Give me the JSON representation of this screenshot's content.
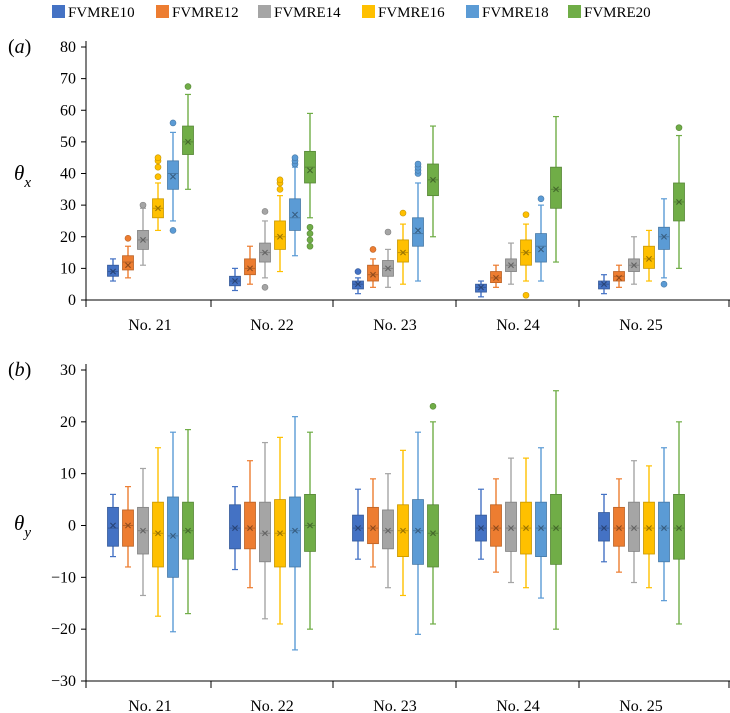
{
  "legend": [
    {
      "name": "FVMRE10",
      "color": "#4472c4"
    },
    {
      "name": "FVMRE12",
      "color": "#ed7d31"
    },
    {
      "name": "FVMRE14",
      "color": "#a5a5a5"
    },
    {
      "name": "FVMRE16",
      "color": "#ffc000"
    },
    {
      "name": "FVMRE18",
      "color": "#5b9bd5"
    },
    {
      "name": "FVMRE20",
      "color": "#70ad47"
    }
  ],
  "chart_data": [
    {
      "type": "box",
      "panel_label": "(a)",
      "ylabel": "θ",
      "ylabel_subscript": "x",
      "ylim": [
        0,
        80
      ],
      "yticks": [
        0,
        10,
        20,
        30,
        40,
        50,
        60,
        70,
        80
      ],
      "categories": [
        "No. 21",
        "No. 22",
        "No. 23",
        "No. 24",
        "No. 25"
      ],
      "series": [
        {
          "name": "FVMRE10",
          "boxes": [
            {
              "min": 6,
              "q1": 7.5,
              "median": 9,
              "q3": 11,
              "max": 13,
              "mean": 9,
              "outliers": []
            },
            {
              "min": 3,
              "q1": 4.5,
              "median": 6,
              "q3": 7.5,
              "max": 10,
              "mean": 6,
              "outliers": []
            },
            {
              "min": 2,
              "q1": 3.5,
              "median": 5,
              "q3": 6,
              "max": 7,
              "mean": 5,
              "outliers": [
                9
              ]
            },
            {
              "min": 1,
              "q1": 2.5,
              "median": 4,
              "q3": 5,
              "max": 6,
              "mean": 4,
              "outliers": []
            },
            {
              "min": 2,
              "q1": 3.5,
              "median": 5,
              "q3": 6,
              "max": 8,
              "mean": 5,
              "outliers": []
            }
          ]
        },
        {
          "name": "FVMRE12",
          "boxes": [
            {
              "min": 7,
              "q1": 9.5,
              "median": 12,
              "q3": 14,
              "max": 17,
              "mean": 11,
              "outliers": [
                19.5
              ]
            },
            {
              "min": 5,
              "q1": 8,
              "median": 10,
              "q3": 13,
              "max": 17,
              "mean": 10,
              "outliers": []
            },
            {
              "min": 4,
              "q1": 6,
              "median": 8,
              "q3": 11,
              "max": 13,
              "mean": 8,
              "outliers": [
                16
              ]
            },
            {
              "min": 4,
              "q1": 5.5,
              "median": 7,
              "q3": 9,
              "max": 11,
              "mean": 7,
              "outliers": []
            },
            {
              "min": 4,
              "q1": 6,
              "median": 7.5,
              "q3": 9,
              "max": 11,
              "mean": 7,
              "outliers": []
            }
          ]
        },
        {
          "name": "FVMRE14",
          "boxes": [
            {
              "min": 11,
              "q1": 16,
              "median": 19,
              "q3": 22,
              "max": 29,
              "mean": 19,
              "outliers": [
                30
              ]
            },
            {
              "min": 7,
              "q1": 12,
              "median": 15,
              "q3": 18,
              "max": 25,
              "mean": 15,
              "outliers": [
                4,
                28
              ]
            },
            {
              "min": 4,
              "q1": 7.5,
              "median": 10,
              "q3": 12.5,
              "max": 16,
              "mean": 10,
              "outliers": [
                21.5
              ]
            },
            {
              "min": 5,
              "q1": 9,
              "median": 11,
              "q3": 13,
              "max": 18,
              "mean": 11,
              "outliers": []
            },
            {
              "min": 5,
              "q1": 9,
              "median": 11,
              "q3": 13,
              "max": 20,
              "mean": 11,
              "outliers": []
            }
          ]
        },
        {
          "name": "FVMRE16",
          "boxes": [
            {
              "min": 22,
              "q1": 26,
              "median": 29,
              "q3": 32,
              "max": 37,
              "mean": 29,
              "outliers": [
                39,
                42,
                44,
                45
              ]
            },
            {
              "min": 9,
              "q1": 16,
              "median": 20,
              "q3": 25,
              "max": 33,
              "mean": 20,
              "outliers": [
                35,
                37,
                38
              ]
            },
            {
              "min": 5,
              "q1": 12,
              "median": 15,
              "q3": 19,
              "max": 24,
              "mean": 15,
              "outliers": [
                27.5
              ]
            },
            {
              "min": 6,
              "q1": 11,
              "median": 15,
              "q3": 19,
              "max": 24,
              "mean": 15,
              "outliers": [
                1.5,
                27
              ]
            },
            {
              "min": 6,
              "q1": 10,
              "median": 13,
              "q3": 17,
              "max": 22,
              "mean": 13,
              "outliers": []
            }
          ]
        },
        {
          "name": "FVMRE18",
          "boxes": [
            {
              "min": 25,
              "q1": 35,
              "median": 40,
              "q3": 44,
              "max": 53,
              "mean": 39,
              "outliers": [
                22,
                56
              ]
            },
            {
              "min": 14,
              "q1": 22,
              "median": 26,
              "q3": 32,
              "max": 42,
              "mean": 27,
              "outliers": [
                43,
                44,
                45
              ]
            },
            {
              "min": 6,
              "q1": 17,
              "median": 21,
              "q3": 26,
              "max": 37,
              "mean": 22,
              "outliers": [
                40,
                41,
                42,
                43
              ]
            },
            {
              "min": 6,
              "q1": 12,
              "median": 17,
              "q3": 21,
              "max": 30,
              "mean": 16,
              "outliers": [
                32
              ]
            },
            {
              "min": 7,
              "q1": 16,
              "median": 20,
              "q3": 23,
              "max": 32,
              "mean": 20,
              "outliers": [
                5
              ]
            }
          ]
        },
        {
          "name": "FVMRE20",
          "boxes": [
            {
              "min": 35,
              "q1": 46,
              "median": 50,
              "q3": 55,
              "max": 65,
              "mean": 50,
              "outliers": [
                67.5
              ]
            },
            {
              "min": 26,
              "q1": 37,
              "median": 42,
              "q3": 47,
              "max": 59,
              "mean": 41,
              "outliers": [
                17,
                19,
                21,
                23
              ]
            },
            {
              "min": 20,
              "q1": 33,
              "median": 38,
              "q3": 43,
              "max": 55,
              "mean": 38,
              "outliers": []
            },
            {
              "min": 12,
              "q1": 29,
              "median": 35,
              "q3": 42,
              "max": 58,
              "mean": 35,
              "outliers": []
            },
            {
              "min": 10,
              "q1": 25,
              "median": 31,
              "q3": 37,
              "max": 52,
              "mean": 31,
              "outliers": [
                54.5
              ]
            }
          ]
        }
      ]
    },
    {
      "type": "box",
      "panel_label": "(b)",
      "ylabel": "θ",
      "ylabel_subscript": "y",
      "ylim": [
        -30,
        30
      ],
      "yticks": [
        -30,
        -20,
        -10,
        0,
        10,
        20,
        30
      ],
      "categories": [
        "No. 21",
        "No. 22",
        "No. 23",
        "No. 24",
        "No. 25"
      ],
      "series": [
        {
          "name": "FVMRE10",
          "boxes": [
            {
              "min": -6,
              "q1": -4,
              "median": -0.5,
              "q3": 3.5,
              "max": 6,
              "mean": 0,
              "outliers": []
            },
            {
              "min": -8.5,
              "q1": -4.5,
              "median": -0.5,
              "q3": 4,
              "max": 7.5,
              "mean": -0.5,
              "outliers": []
            },
            {
              "min": -6.5,
              "q1": -3,
              "median": -0.5,
              "q3": 2,
              "max": 7,
              "mean": -0.5,
              "outliers": []
            },
            {
              "min": -6.5,
              "q1": -3,
              "median": -0.5,
              "q3": 2,
              "max": 7,
              "mean": -0.5,
              "outliers": []
            },
            {
              "min": -7,
              "q1": -3,
              "median": -0.5,
              "q3": 2.5,
              "max": 6,
              "mean": -0.5,
              "outliers": []
            }
          ]
        },
        {
          "name": "FVMRE12",
          "boxes": [
            {
              "min": -8,
              "q1": -4,
              "median": 0,
              "q3": 3,
              "max": 7.5,
              "mean": 0,
              "outliers": []
            },
            {
              "min": -12,
              "q1": -4.5,
              "median": -0.5,
              "q3": 4.5,
              "max": 12.5,
              "mean": -0.5,
              "outliers": []
            },
            {
              "min": -8,
              "q1": -3.5,
              "median": -0.5,
              "q3": 3.5,
              "max": 9,
              "mean": -0.5,
              "outliers": []
            },
            {
              "min": -9,
              "q1": -4,
              "median": -0.5,
              "q3": 4,
              "max": 9,
              "mean": -0.5,
              "outliers": []
            },
            {
              "min": -9,
              "q1": -4,
              "median": -0.5,
              "q3": 3.5,
              "max": 9,
              "mean": -0.5,
              "outliers": []
            }
          ]
        },
        {
          "name": "FVMRE14",
          "boxes": [
            {
              "min": -13.5,
              "q1": -5.5,
              "median": -1,
              "q3": 3.5,
              "max": 11,
              "mean": -1,
              "outliers": []
            },
            {
              "min": -18,
              "q1": -7,
              "median": -1.5,
              "q3": 4.5,
              "max": 16,
              "mean": -1.5,
              "outliers": []
            },
            {
              "min": -12,
              "q1": -4.5,
              "median": -1,
              "q3": 3,
              "max": 10,
              "mean": -1,
              "outliers": []
            },
            {
              "min": -11,
              "q1": -5,
              "median": -0.5,
              "q3": 4.5,
              "max": 13,
              "mean": -0.5,
              "outliers": []
            },
            {
              "min": -11,
              "q1": -5,
              "median": -0.5,
              "q3": 4.5,
              "max": 12.5,
              "mean": -0.5,
              "outliers": []
            }
          ]
        },
        {
          "name": "FVMRE16",
          "boxes": [
            {
              "min": -17.5,
              "q1": -8,
              "median": -1.5,
              "q3": 4.5,
              "max": 15,
              "mean": -1.5,
              "outliers": []
            },
            {
              "min": -19,
              "q1": -8,
              "median": -1.5,
              "q3": 5,
              "max": 17,
              "mean": -1.5,
              "outliers": []
            },
            {
              "min": -13.5,
              "q1": -6,
              "median": -1,
              "q3": 4,
              "max": 14.5,
              "mean": -1,
              "outliers": []
            },
            {
              "min": -12,
              "q1": -5.5,
              "median": -0.5,
              "q3": 4.5,
              "max": 13,
              "mean": -0.5,
              "outliers": []
            },
            {
              "min": -12,
              "q1": -5.5,
              "median": -0.5,
              "q3": 4.5,
              "max": 11.5,
              "mean": -0.5,
              "outliers": []
            }
          ]
        },
        {
          "name": "FVMRE18",
          "boxes": [
            {
              "min": -20.5,
              "q1": -10,
              "median": -2,
              "q3": 5.5,
              "max": 18,
              "mean": -2,
              "outliers": []
            },
            {
              "min": -24,
              "q1": -8,
              "median": -1,
              "q3": 5.5,
              "max": 21,
              "mean": -1,
              "outliers": []
            },
            {
              "min": -21,
              "q1": -7.5,
              "median": -1,
              "q3": 5,
              "max": 18,
              "mean": -1,
              "outliers": []
            },
            {
              "min": -14,
              "q1": -6,
              "median": -0.5,
              "q3": 4.5,
              "max": 15,
              "mean": -0.5,
              "outliers": []
            },
            {
              "min": -14.5,
              "q1": -7,
              "median": -0.5,
              "q3": 4.5,
              "max": 15,
              "mean": -0.5,
              "outliers": []
            }
          ]
        },
        {
          "name": "FVMRE20",
          "boxes": [
            {
              "min": -17,
              "q1": -6.5,
              "median": -1,
              "q3": 4.5,
              "max": 18.5,
              "mean": -1,
              "outliers": []
            },
            {
              "min": -20,
              "q1": -5,
              "median": 0,
              "q3": 6,
              "max": 18,
              "mean": 0,
              "outliers": []
            },
            {
              "min": -19,
              "q1": -8,
              "median": -1.5,
              "q3": 4,
              "max": 20,
              "mean": -1.5,
              "outliers": [
                23
              ]
            },
            {
              "min": -20,
              "q1": -7.5,
              "median": -0.5,
              "q3": 6,
              "max": 26,
              "mean": -0.5,
              "outliers": []
            },
            {
              "min": -19,
              "q1": -6.5,
              "median": -0.5,
              "q3": 6,
              "max": 20,
              "mean": -0.5,
              "outliers": []
            }
          ]
        }
      ]
    }
  ]
}
